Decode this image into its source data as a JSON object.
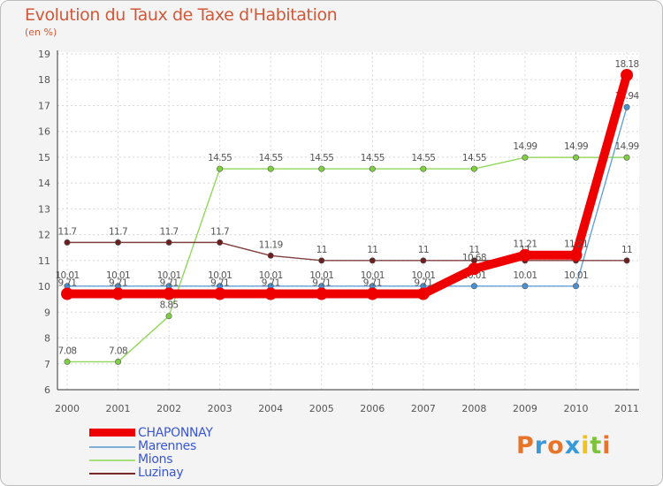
{
  "title": "Evolution du Taux de Taxe d'Habitation",
  "subtitle": "(en %)",
  "chart_data": {
    "type": "line",
    "categories": [
      "2000",
      "2001",
      "2002",
      "2003",
      "2004",
      "2005",
      "2006",
      "2007",
      "2008",
      "2009",
      "2010",
      "2011"
    ],
    "ylim": [
      6,
      19
    ],
    "yticks": [
      6,
      7,
      8,
      9,
      10,
      11,
      12,
      13,
      14,
      15,
      16,
      17,
      18,
      19
    ],
    "grid": true,
    "series": [
      {
        "name": "Marennes",
        "color": "#4a90d0",
        "values": [
          10.01,
          10.01,
          10.01,
          10.01,
          10.01,
          10.01,
          10.01,
          10.01,
          10.01,
          10.01,
          10.01,
          16.94
        ],
        "labels": [
          "10.01",
          "10.01",
          "10.01",
          "10.01",
          "10.01",
          "10.01",
          "10.01",
          "10.01",
          "10.01",
          "10.01",
          "10.01",
          "16.94"
        ]
      },
      {
        "name": "Mions",
        "color": "#7fd03e",
        "values": [
          7.08,
          7.08,
          8.85,
          14.55,
          14.55,
          14.55,
          14.55,
          14.55,
          14.55,
          14.99,
          14.99,
          14.99
        ],
        "labels": [
          "7.08",
          "7.08",
          "8.85",
          "14.55",
          "14.55",
          "14.55",
          "14.55",
          "14.55",
          "14.55",
          "14.99",
          "14.99",
          "14.99"
        ]
      },
      {
        "name": "Luzinay",
        "color": "#6b1f1f",
        "values": [
          11.7,
          11.7,
          11.7,
          11.7,
          11.19,
          11,
          11,
          11,
          11,
          11,
          11,
          11
        ],
        "labels": [
          "11.7",
          "11.7",
          "11.7",
          "11.7",
          "11.19",
          "11",
          "11",
          "11",
          "11",
          "11",
          "11",
          "11"
        ]
      },
      {
        "name": "CHAPONNAY",
        "color": "#ee0000",
        "values": [
          9.71,
          9.71,
          9.71,
          9.71,
          9.71,
          9.71,
          9.71,
          9.71,
          10.68,
          11.21,
          11.21,
          18.18
        ],
        "labels": [
          "9.71",
          "9.71",
          "9.71",
          "9.71",
          "9.71",
          "9.71",
          "9.71",
          "9.71",
          "10.68",
          "11.21",
          "11.21",
          "18.18"
        ]
      }
    ]
  },
  "legend": [
    {
      "name": "CHAPONNAY",
      "color": "#ee0000"
    },
    {
      "name": "Marennes",
      "color": "#7bafd8"
    },
    {
      "name": "Mions",
      "color": "#a6e07a"
    },
    {
      "name": "Luzinay",
      "color": "#7a2a2a"
    }
  ],
  "logo": {
    "letters": [
      "P",
      "r",
      "o",
      "x",
      "i",
      "t",
      "i"
    ],
    "colors": [
      "#e8742a",
      "#3a9ad9",
      "#e8742a",
      "#3a9ad9",
      "#f2c21a",
      "#7cc23a",
      "#e8742a"
    ]
  }
}
